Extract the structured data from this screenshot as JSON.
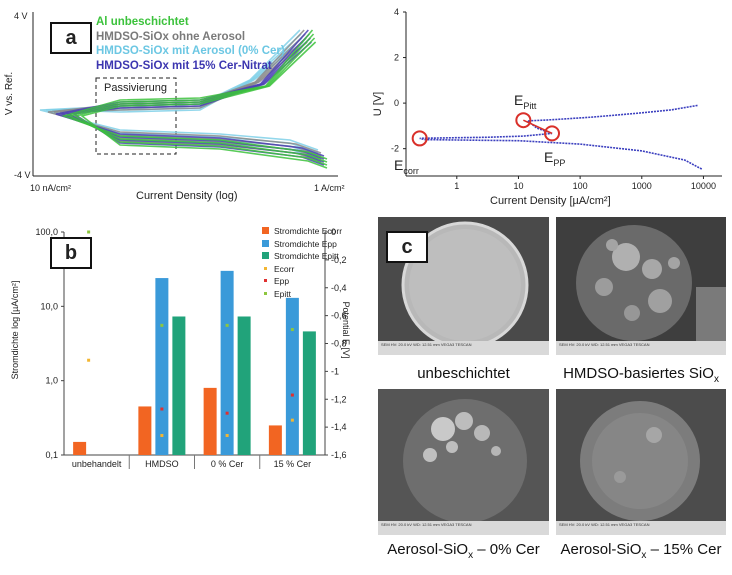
{
  "colors": {
    "al": "#3cc23c",
    "hmdso": "#8a8a8a",
    "aerosol0": "#7fd0e8",
    "cer15": "#4b3fb5",
    "bar_ecorr": "#f26522",
    "bar_epp": "#3a9ad9",
    "bar_epitt": "#21a37a",
    "pt_ecorr": "#f2b632",
    "pt_epp": "#e0302f",
    "pt_epitt": "#8dc63f",
    "curve_right": "#3b3fbf",
    "circle": "#d9302a"
  },
  "panel_a": {
    "badge": "a",
    "legend": [
      {
        "label": "Al unbeschichtet",
        "color_key": "al"
      },
      {
        "label": "HMDSO-SiOx ohne Aerosol",
        "color_key": "hmdso"
      },
      {
        "label": "HMDSO-SiOx mit Aerosol (0% Cer)",
        "color_key": "aerosol0"
      },
      {
        "label": "HMDSO-SiOx mit 15% Cer-Nitrat",
        "color_key": "cer15"
      }
    ],
    "y_top": "4 V",
    "y_bottom": "-4 V",
    "ylabel": "V vs. Ref.",
    "x_left": "10 nA/cm²",
    "x_right": "1 A/cm²",
    "xlabel": "Current Density (log)",
    "box_label": "Passivierung"
  },
  "panel_right": {
    "ylabel": "U [V]",
    "xlabel": "Current Density [µA/cm²]",
    "labels": {
      "epitt": "E",
      "epitt_sub": "Pitt",
      "epp": "E",
      "epp_sub": "PP",
      "ecorr": "E",
      "ecorr_sub": "corr"
    }
  },
  "panel_b": {
    "badge": "b",
    "ylabel_left": "Stromdichte log [µA/cm²]",
    "ylabel_right": "Potential E [V]",
    "legend": [
      {
        "label": "Stromdichte Ecorr",
        "kind": "bar",
        "color_key": "bar_ecorr"
      },
      {
        "label": "Stromdichte Epp",
        "kind": "bar",
        "color_key": "bar_epp"
      },
      {
        "label": "Stromdichte Epitt",
        "kind": "bar",
        "color_key": "bar_epitt"
      },
      {
        "label": "Ecorr",
        "kind": "dot",
        "color_key": "pt_ecorr"
      },
      {
        "label": "Epp",
        "kind": "dot",
        "color_key": "pt_epp"
      },
      {
        "label": "Epitt",
        "kind": "dot",
        "color_key": "pt_epitt"
      }
    ]
  },
  "panel_c": {
    "badge": "c",
    "captions": [
      "unbeschichtet",
      "HMDSO-basiertes SiO",
      "Aerosol-SiO",
      "Aerosol-SiO"
    ],
    "caption_sub": "x",
    "caption_suffix_3": " – 0% Cer",
    "caption_suffix_4": " – 15% Cer",
    "sem_footer": "SEM HV: 20.0 kV   WD: 12.51 mm   VEGA3 TESCAN"
  },
  "chart_data": [
    {
      "type": "line",
      "title": "",
      "xlabel": "Current Density (log)",
      "ylabel": "V vs. Ref.",
      "x_range_labels": [
        "10 nA/cm²",
        "1 A/cm²"
      ],
      "ylim_labels": [
        "-4 V",
        "4 V"
      ],
      "series": [
        {
          "name": "Al unbeschichtet"
        },
        {
          "name": "HMDSO-SiOx ohne Aerosol"
        },
        {
          "name": "HMDSO-SiOx mit Aerosol (0% Cer)"
        },
        {
          "name": "HMDSO-SiOx mit 15% Cer-Nitrat"
        }
      ]
    },
    {
      "type": "line",
      "xlabel": "Current Density [µA/cm²]",
      "ylabel": "U [V]",
      "x_log": true,
      "x_ticks": [
        "1",
        "10",
        "100",
        "1000",
        "10000"
      ],
      "x_tick_values": [
        1,
        10,
        100,
        1000,
        10000
      ],
      "y_ticks": [
        4,
        2,
        0,
        -2
      ],
      "ylim": [
        -3.2,
        4
      ],
      "xlim": [
        0.15,
        20000
      ],
      "curve": {
        "x": [
          8000,
          3000,
          800,
          150,
          40,
          25,
          14,
          20,
          35,
          12,
          3,
          1,
          0.5,
          0.3,
          0.25,
          0.3,
          1,
          10,
          100,
          1000,
          5000,
          8000,
          9500
        ],
        "y": [
          -0.1,
          -0.3,
          -0.45,
          -0.62,
          -0.72,
          -0.75,
          -0.78,
          -1.1,
          -1.33,
          -1.45,
          -1.5,
          -1.52,
          -1.53,
          -1.54,
          -1.55,
          -1.6,
          -1.62,
          -1.65,
          -1.8,
          -2.1,
          -2.5,
          -2.8,
          -2.9
        ]
      },
      "points": {
        "epitt": {
          "x": 12,
          "y": -0.75
        },
        "epp": {
          "x": 35,
          "y": -1.33
        },
        "ecorr": {
          "x": 0.25,
          "y": -1.55
        }
      }
    },
    {
      "type": "bar",
      "categories": [
        "unbehandelt",
        "HMDSO",
        "0 % Cer",
        "15 % Cer"
      ],
      "y_log": true,
      "ylim": [
        0.1,
        100
      ],
      "y_ticks": [
        "0,1",
        "1,0",
        "10,0",
        "100,0"
      ],
      "y_tick_values": [
        0.1,
        1,
        10,
        100
      ],
      "y2_ticks": [
        "0",
        "-0,2",
        "-0,4",
        "-0,6",
        "-0,8",
        "-1",
        "-1,2",
        "-1,4",
        "-1,6"
      ],
      "y2_tick_values": [
        0,
        -0.2,
        -0.4,
        -0.6,
        -0.8,
        -1,
        -1.2,
        -1.4,
        -1.6
      ],
      "y2lim": [
        -1.6,
        0
      ],
      "series": [
        {
          "name": "Stromdichte Ecorr",
          "values": [
            0.15,
            0.45,
            0.8,
            0.25
          ]
        },
        {
          "name": "Stromdichte Epp",
          "values": [
            null,
            24,
            30,
            13
          ]
        },
        {
          "name": "Stromdichte Epitt",
          "values": [
            null,
            7.3,
            7.3,
            4.6
          ]
        }
      ],
      "points": [
        {
          "name": "Ecorr",
          "values": [
            -0.92,
            -1.46,
            -1.46,
            -1.35
          ]
        },
        {
          "name": "Epp",
          "values": [
            null,
            -1.27,
            -1.3,
            -1.17
          ]
        },
        {
          "name": "Epitt",
          "values": [
            0,
            -0.67,
            -0.67,
            -0.7
          ]
        }
      ]
    }
  ]
}
